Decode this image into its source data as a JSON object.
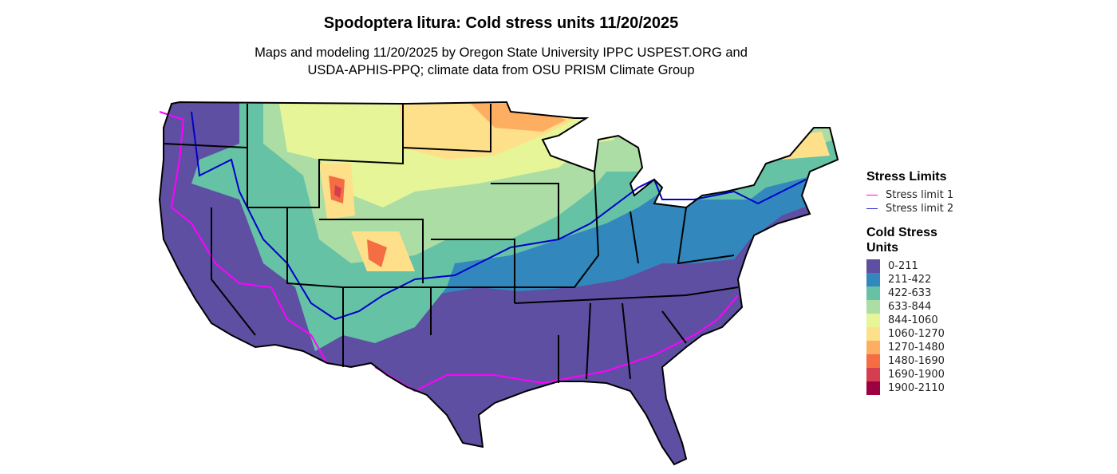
{
  "title": "Spodoptera litura: Cold stress units 11/20/2025",
  "subtitle_lines": [
    "Maps and modeling 11/20/2025 by Oregon State University IPPC USPEST.ORG and",
    "USDA-APHIS-PPQ; climate data from OSU PRISM Climate Group"
  ],
  "legend": {
    "limits_title": "Stress Limits",
    "limits": [
      {
        "label": "Stress limit 1",
        "color": "#FF00FF"
      },
      {
        "label": "Stress limit 2",
        "color": "#0000FF"
      }
    ],
    "units_title": "Cold Stress Units",
    "classes": [
      {
        "label": "0-211",
        "color": "#5E4FA2"
      },
      {
        "label": "211-422",
        "color": "#3288BD"
      },
      {
        "label": "422-633",
        "color": "#66C2A5"
      },
      {
        "label": "633-844",
        "color": "#ABDDA4"
      },
      {
        "label": "844-1060",
        "color": "#E6F598"
      },
      {
        "label": "1060-1270",
        "color": "#FEE08B"
      },
      {
        "label": "1270-1480",
        "color": "#FDAE61"
      },
      {
        "label": "1480-1690",
        "color": "#F46D43"
      },
      {
        "label": "1690-1900",
        "color": "#D53E4F"
      },
      {
        "label": "1900-2110",
        "color": "#9E0142"
      }
    ]
  }
}
